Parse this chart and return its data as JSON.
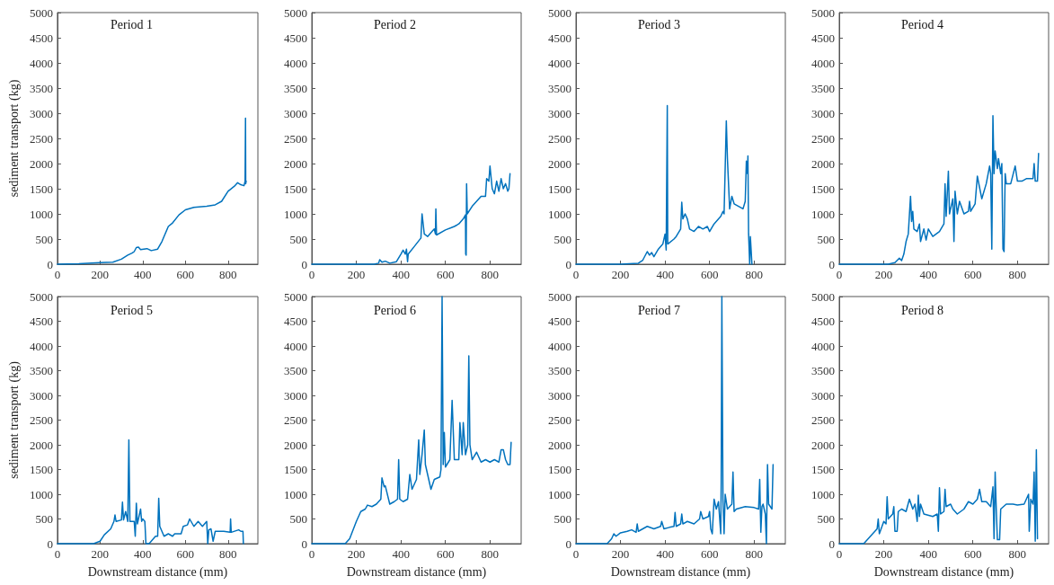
{
  "chart_data": [
    {
      "type": "line",
      "title": "Period 1",
      "ylabel": "sediment transport (kg)",
      "xlim": [
        0,
        940
      ],
      "xticks": [
        0,
        200,
        400,
        600,
        800
      ],
      "ylim": [
        0,
        5000
      ],
      "yticks": [
        0,
        500,
        1000,
        1500,
        2000,
        2500,
        3000,
        3500,
        4000,
        4500,
        5000
      ],
      "grid": false,
      "marker": "none",
      "line_style": "solid",
      "x": [
        0,
        100,
        200,
        260,
        300,
        330,
        350,
        360,
        370,
        380,
        390,
        420,
        440,
        470,
        490,
        520,
        540,
        570,
        600,
        640,
        700,
        740,
        770,
        800,
        830,
        845,
        860,
        875,
        880,
        882,
        883,
        885
      ],
      "series": [
        {
          "color": "#0072bd",
          "values": [
            0,
            10,
            30,
            40,
            100,
            180,
            220,
            250,
            330,
            340,
            290,
            310,
            270,
            300,
            450,
            750,
            820,
            980,
            1080,
            1130,
            1150,
            1180,
            1250,
            1450,
            1550,
            1620,
            1580,
            1560,
            1650,
            2900,
            1600,
            1650
          ]
        }
      ]
    },
    {
      "type": "line",
      "title": "Period 2",
      "xlim": [
        0,
        940
      ],
      "xticks": [
        0,
        200,
        400,
        600,
        800
      ],
      "ylim": [
        0,
        5000
      ],
      "yticks": [
        0,
        500,
        1000,
        1500,
        2000,
        2500,
        3000,
        3500,
        4000,
        4500,
        5000
      ],
      "grid": false,
      "marker": "none",
      "line_style": "solid",
      "x": [
        0,
        280,
        300,
        305,
        315,
        330,
        350,
        380,
        400,
        410,
        420,
        425,
        430,
        433,
        460,
        490,
        495,
        505,
        520,
        540,
        550,
        555,
        557,
        560,
        600,
        640,
        660,
        680,
        690,
        691,
        693,
        695,
        698,
        720,
        760,
        780,
        785,
        795,
        800,
        810,
        820,
        830,
        840,
        850,
        860,
        870,
        880,
        885,
        890
      ],
      "series": [
        {
          "color": "#0072bd",
          "values": [
            0,
            0,
            20,
            90,
            40,
            60,
            20,
            50,
            200,
            280,
            200,
            300,
            50,
            200,
            350,
            520,
            1000,
            600,
            550,
            650,
            700,
            600,
            1100,
            580,
            680,
            750,
            800,
            900,
            980,
            200,
            180,
            1600,
            1000,
            1150,
            1350,
            1350,
            1700,
            1650,
            1950,
            1500,
            1400,
            1650,
            1450,
            1700,
            1500,
            1600,
            1450,
            1500,
            1800
          ]
        }
      ]
    },
    {
      "type": "line",
      "title": "Period 3",
      "xlim": [
        0,
        940
      ],
      "xticks": [
        0,
        200,
        400,
        600,
        800
      ],
      "ylim": [
        0,
        5000
      ],
      "yticks": [
        0,
        500,
        1000,
        1500,
        2000,
        2500,
        3000,
        3500,
        4000,
        4500,
        5000
      ],
      "grid": false,
      "marker": "none",
      "line_style": "solid",
      "x": [
        0,
        200,
        280,
        300,
        320,
        330,
        340,
        350,
        370,
        390,
        400,
        405,
        410,
        412,
        440,
        450,
        470,
        475,
        480,
        490,
        500,
        510,
        530,
        550,
        570,
        590,
        600,
        620,
        650,
        660,
        665,
        675,
        680,
        690,
        700,
        710,
        730,
        750,
        760,
        765,
        770,
        772,
        775,
        780,
        783,
        790
      ],
      "series": [
        {
          "color": "#0072bd",
          "values": [
            0,
            0,
            20,
            80,
            250,
            180,
            230,
            150,
            300,
            400,
            600,
            280,
            3150,
            400,
            500,
            550,
            700,
            1230,
            900,
            1000,
            900,
            700,
            650,
            750,
            700,
            750,
            650,
            800,
            950,
            1050,
            1000,
            2850,
            2100,
            1100,
            1350,
            1200,
            1150,
            1100,
            1250,
            2050,
            1800,
            2150,
            600,
            0,
            550,
            0
          ]
        }
      ]
    },
    {
      "type": "line",
      "title": "Period 4",
      "xlim": [
        0,
        940
      ],
      "xticks": [
        0,
        200,
        400,
        600,
        800
      ],
      "ylim": [
        0,
        5000
      ],
      "yticks": [
        0,
        500,
        1000,
        1500,
        2000,
        2500,
        3000,
        3500,
        4000,
        4500,
        5000
      ],
      "grid": false,
      "marker": "none",
      "line_style": "solid",
      "x": [
        0,
        220,
        250,
        270,
        280,
        290,
        300,
        310,
        320,
        325,
        330,
        335,
        350,
        360,
        365,
        380,
        390,
        400,
        420,
        450,
        470,
        475,
        480,
        490,
        495,
        510,
        515,
        520,
        530,
        540,
        560,
        580,
        585,
        590,
        610,
        620,
        640,
        660,
        675,
        680,
        685,
        690,
        695,
        700,
        710,
        715,
        725,
        730,
        735,
        740,
        745,
        750,
        770,
        790,
        800,
        820,
        840,
        870,
        875,
        880,
        890,
        895
      ],
      "series": [
        {
          "color": "#0072bd",
          "values": [
            0,
            0,
            30,
            120,
            70,
            200,
            450,
            600,
            1350,
            850,
            1050,
            700,
            650,
            800,
            450,
            700,
            480,
            700,
            550,
            650,
            800,
            1600,
            950,
            1850,
            1000,
            1300,
            450,
            1450,
            1000,
            1250,
            1000,
            1050,
            1250,
            1050,
            1200,
            1750,
            1300,
            1600,
            1950,
            1800,
            300,
            2950,
            1800,
            2250,
            1900,
            2100,
            1800,
            2000,
            300,
            250,
            1800,
            1600,
            1600,
            1950,
            1650,
            1650,
            1700,
            1700,
            2000,
            1650,
            1650,
            2200
          ]
        }
      ]
    },
    {
      "type": "line",
      "title": "Period 5",
      "xlabel": "Downstream distance (mm)",
      "ylabel": "sediment transport (kg)",
      "xlim": [
        0,
        940
      ],
      "xticks": [
        0,
        200,
        400,
        600,
        800
      ],
      "ylim": [
        0,
        5000
      ],
      "yticks": [
        0,
        500,
        1000,
        1500,
        2000,
        2500,
        3000,
        3500,
        4000,
        4500,
        5000
      ],
      "grid": false,
      "marker": "none",
      "line_style": "solid",
      "x": [
        0,
        170,
        200,
        220,
        250,
        265,
        270,
        275,
        300,
        305,
        310,
        320,
        330,
        335,
        340,
        360,
        365,
        370,
        375,
        390,
        395,
        400,
        410,
        415,
        430,
        460,
        470,
        475,
        480,
        490,
        500,
        520,
        540,
        550,
        580,
        590,
        610,
        620,
        640,
        660,
        680,
        700,
        705,
        710,
        720,
        730,
        740,
        780,
        810,
        812,
        815,
        850,
        860,
        870,
        872
      ],
      "series": [
        {
          "color": "#0072bd",
          "values": [
            0,
            0,
            50,
            180,
            300,
            450,
            580,
            450,
            480,
            840,
            480,
            650,
            450,
            2100,
            450,
            450,
            150,
            820,
            400,
            700,
            450,
            500,
            450,
            0,
            0,
            150,
            150,
            920,
            350,
            250,
            150,
            200,
            150,
            200,
            200,
            350,
            380,
            500,
            350,
            450,
            350,
            450,
            0,
            280,
            300,
            50,
            250,
            250,
            230,
            500,
            230,
            280,
            250,
            250,
            0
          ]
        }
      ]
    },
    {
      "type": "line",
      "title": "Period 6",
      "xlabel": "Downstream distance (mm)",
      "xlim": [
        0,
        940
      ],
      "xticks": [
        0,
        200,
        400,
        600,
        800
      ],
      "ylim": [
        0,
        5000
      ],
      "yticks": [
        0,
        500,
        1000,
        1500,
        2000,
        2500,
        3000,
        3500,
        4000,
        4500,
        5000
      ],
      "grid": false,
      "marker": "none",
      "line_style": "solid",
      "x": [
        0,
        150,
        170,
        200,
        220,
        240,
        250,
        270,
        290,
        310,
        315,
        325,
        330,
        350,
        370,
        385,
        390,
        395,
        410,
        430,
        440,
        450,
        470,
        480,
        485,
        495,
        505,
        510,
        525,
        535,
        550,
        575,
        580,
        585,
        590,
        595,
        600,
        620,
        630,
        640,
        660,
        665,
        675,
        680,
        690,
        700,
        705,
        710,
        720,
        740,
        760,
        780,
        800,
        820,
        840,
        850,
        860,
        870,
        880,
        890,
        895
      ],
      "series": [
        {
          "color": "#0072bd",
          "values": [
            0,
            0,
            100,
            450,
            650,
            700,
            780,
            750,
            800,
            900,
            1330,
            1150,
            1170,
            800,
            850,
            900,
            1700,
            900,
            850,
            900,
            1400,
            1100,
            1300,
            2100,
            1400,
            1800,
            2300,
            1600,
            1300,
            1100,
            1300,
            1350,
            1500,
            5000,
            1600,
            2250,
            1550,
            1700,
            2900,
            1700,
            1700,
            2450,
            1800,
            2450,
            1800,
            2000,
            3800,
            2000,
            1700,
            1850,
            1650,
            1700,
            1650,
            1700,
            1650,
            1900,
            1900,
            1700,
            1600,
            1600,
            2050
          ]
        }
      ]
    },
    {
      "type": "line",
      "title": "Period 7",
      "xlabel": "Downstream distance (mm)",
      "xlim": [
        0,
        940
      ],
      "xticks": [
        0,
        200,
        400,
        600,
        800
      ],
      "ylim": [
        0,
        5000
      ],
      "yticks": [
        0,
        500,
        1000,
        1500,
        2000,
        2500,
        3000,
        3500,
        4000,
        4500,
        5000
      ],
      "grid": false,
      "marker": "none",
      "line_style": "solid",
      "x": [
        0,
        140,
        160,
        170,
        180,
        200,
        230,
        250,
        270,
        275,
        280,
        300,
        320,
        350,
        380,
        385,
        395,
        420,
        440,
        445,
        450,
        470,
        475,
        480,
        500,
        530,
        555,
        560,
        570,
        595,
        600,
        605,
        612,
        620,
        630,
        640,
        650,
        652,
        655,
        660,
        665,
        670,
        680,
        700,
        705,
        710,
        720,
        760,
        800,
        820,
        825,
        830,
        835,
        840,
        850,
        855,
        860,
        865,
        880,
        885
      ],
      "series": [
        {
          "color": "#0072bd",
          "values": [
            0,
            0,
            100,
            200,
            150,
            220,
            250,
            280,
            230,
            400,
            250,
            300,
            350,
            300,
            350,
            450,
            300,
            330,
            350,
            630,
            350,
            400,
            600,
            400,
            450,
            400,
            500,
            650,
            500,
            550,
            650,
            300,
            200,
            900,
            700,
            850,
            200,
            1250,
            5000,
            900,
            200,
            1000,
            700,
            800,
            1450,
            650,
            700,
            750,
            730,
            700,
            1300,
            230,
            750,
            800,
            600,
            0,
            1600,
            800,
            700,
            1600
          ]
        }
      ]
    },
    {
      "type": "line",
      "title": "Period 8",
      "xlabel": "Downstream distance (mm)",
      "xlim": [
        0,
        940
      ],
      "xticks": [
        0,
        200,
        400,
        600,
        800
      ],
      "ylim": [
        0,
        5000
      ],
      "yticks": [
        0,
        500,
        1000,
        1500,
        2000,
        2500,
        3000,
        3500,
        4000,
        4500,
        5000
      ],
      "grid": false,
      "marker": "none",
      "line_style": "solid",
      "x": [
        0,
        110,
        150,
        170,
        175,
        180,
        200,
        210,
        215,
        220,
        240,
        245,
        250,
        260,
        265,
        280,
        300,
        315,
        330,
        340,
        350,
        355,
        360,
        365,
        380,
        420,
        440,
        445,
        450,
        455,
        470,
        475,
        480,
        500,
        510,
        530,
        560,
        580,
        600,
        620,
        630,
        640,
        660,
        680,
        690,
        695,
        700,
        705,
        710,
        720,
        725,
        750,
        780,
        800,
        830,
        850,
        853,
        860,
        870,
        875,
        880,
        885,
        890
      ],
      "series": [
        {
          "color": "#0072bd",
          "values": [
            0,
            0,
            200,
            300,
            500,
            200,
            450,
            400,
            950,
            500,
            600,
            750,
            250,
            250,
            650,
            700,
            650,
            900,
            700,
            800,
            450,
            980,
            550,
            800,
            600,
            550,
            600,
            250,
            1130,
            600,
            650,
            1100,
            750,
            800,
            700,
            600,
            700,
            850,
            800,
            900,
            1100,
            850,
            850,
            750,
            1150,
            100,
            1450,
            700,
            80,
            80,
            700,
            800,
            800,
            780,
            800,
            1000,
            250,
            900,
            800,
            1450,
            50,
            1900,
            100
          ]
        }
      ]
    }
  ]
}
